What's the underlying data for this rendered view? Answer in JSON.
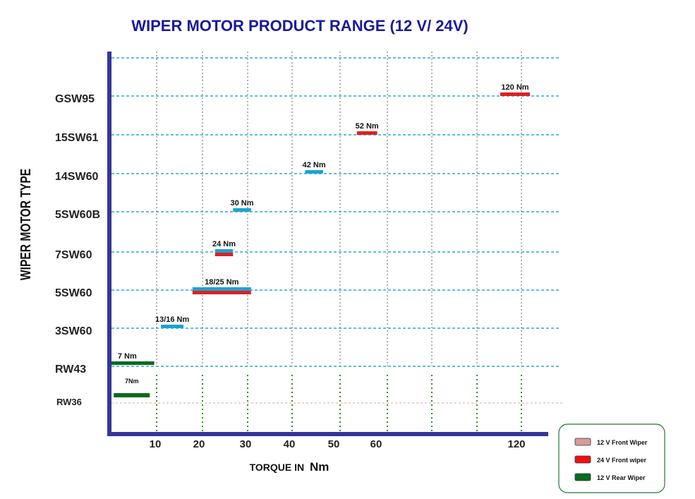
{
  "chart_data": {
    "type": "bar",
    "orientation": "horizontal",
    "title": "WIPER MOTOR PRODUCT RANGE (12 V/ 24V)",
    "xlabel_prefix": "TORQUE  IN",
    "xlabel_unit": "Nm",
    "ylabel": "WIPER MOTOR TYPE",
    "categories": [
      "GSW95",
      "15SW61",
      "14SW60",
      "5SW60B",
      "7SW60",
      "5SW60",
      "3SW60",
      "RW43",
      "RW36"
    ],
    "x_ticks": [
      10,
      20,
      30,
      40,
      50,
      60,
      120
    ],
    "series": [
      {
        "name": "12 V Front Wiper",
        "color": "#1aa3d1"
      },
      {
        "name": "24 V Front wiper",
        "color": "#e02020"
      },
      {
        "name": "12 V Rear Wiper",
        "color": "#0a6b1e"
      }
    ],
    "legend_swatch_colors": [
      "#d99a98",
      "#ee1111",
      "#0a6b1e"
    ],
    "legend_position": "bottom-right",
    "bars": [
      {
        "category": "GSW95",
        "series": 1,
        "x_start": 115,
        "x_end": 122,
        "label": "120 Nm"
      },
      {
        "category": "15SW61",
        "series": 1,
        "x_start": 54,
        "x_end": 58,
        "label": "52 Nm"
      },
      {
        "category": "14SW60",
        "series": 0,
        "x_start": 43,
        "x_end": 47,
        "label": "42 Nm"
      },
      {
        "category": "5SW60B",
        "series": 0,
        "x_start": 27,
        "x_end": 31,
        "label": "30 Nm"
      },
      {
        "category": "7SW60",
        "series": 0,
        "x_start": 23,
        "x_end": 27,
        "label": "24 Nm"
      },
      {
        "category": "7SW60",
        "series": 1,
        "x_start": 23,
        "x_end": 27,
        "label": ""
      },
      {
        "category": "5SW60",
        "series": 0,
        "x_start": 18,
        "x_end": 31,
        "label": "18/25 Nm"
      },
      {
        "category": "5SW60",
        "series": 1,
        "x_start": 18,
        "x_end": 31,
        "label": ""
      },
      {
        "category": "3SW60",
        "series": 0,
        "x_start": 11,
        "x_end": 16,
        "label": "13/16 Nm"
      },
      {
        "category": "RW43",
        "series": 2,
        "x_start": 0,
        "x_end": 9.5,
        "label": "7 Nm"
      },
      {
        "category": "RW36",
        "series": 2,
        "x_start": 0.5,
        "x_end": 8.5,
        "label": "7Nm"
      }
    ],
    "grid": true
  }
}
